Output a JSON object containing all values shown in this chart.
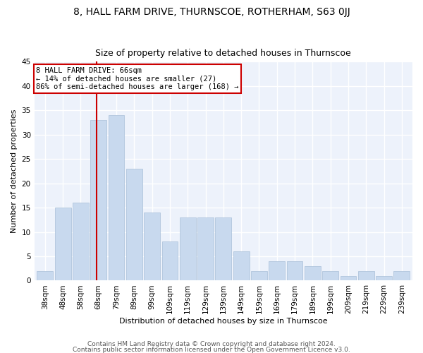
{
  "title": "8, HALL FARM DRIVE, THURNSCOE, ROTHERHAM, S63 0JJ",
  "subtitle": "Size of property relative to detached houses in Thurnscoe",
  "xlabel": "Distribution of detached houses by size in Thurnscoe",
  "ylabel": "Number of detached properties",
  "footer1": "Contains HM Land Registry data © Crown copyright and database right 2024.",
  "footer2": "Contains public sector information licensed under the Open Government Licence v3.0.",
  "categories": [
    "38sqm",
    "48sqm",
    "58sqm",
    "68sqm",
    "79sqm",
    "89sqm",
    "99sqm",
    "109sqm",
    "119sqm",
    "129sqm",
    "139sqm",
    "149sqm",
    "159sqm",
    "169sqm",
    "179sqm",
    "189sqm",
    "199sqm",
    "209sqm",
    "219sqm",
    "229sqm",
    "239sqm"
  ],
  "values": [
    2,
    15,
    16,
    33,
    34,
    23,
    14,
    8,
    13,
    13,
    13,
    6,
    2,
    4,
    4,
    3,
    2,
    1,
    2,
    1,
    2
  ],
  "bar_color": "#c8d9ee",
  "bar_edge_color": "#a8bfd8",
  "annotation_label": "8 HALL FARM DRIVE: 66sqm",
  "annotation_line1": "← 14% of detached houses are smaller (27)",
  "annotation_line2": "86% of semi-detached houses are larger (168) →",
  "ylim": [
    0,
    45
  ],
  "yticks": [
    0,
    5,
    10,
    15,
    20,
    25,
    30,
    35,
    40,
    45
  ],
  "fig_bg": "#ffffff",
  "plot_bg": "#edf2fb",
  "grid_color": "#ffffff",
  "annotation_box_bg": "#ffffff",
  "annotation_box_edge": "#cc0000",
  "vline_color": "#cc0000",
  "title_fontsize": 10,
  "subtitle_fontsize": 9,
  "axis_label_fontsize": 8,
  "tick_fontsize": 7.5,
  "annotation_fontsize": 7.5,
  "footer_fontsize": 6.5,
  "vline_xindex": 2.88
}
